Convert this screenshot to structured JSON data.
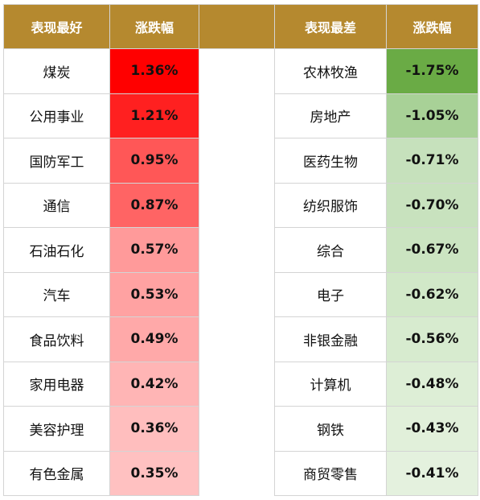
{
  "headers": {
    "best_label": "表现最好",
    "best_change": "涨跌幅",
    "worst_label": "表现最差",
    "worst_change": "涨跌幅"
  },
  "best": [
    {
      "name": "煤炭",
      "change": "1.36%",
      "color": "#ff0000"
    },
    {
      "name": "公用事业",
      "change": "1.21%",
      "color": "#ff2020"
    },
    {
      "name": "国防军工",
      "change": "0.95%",
      "color": "#ff5757"
    },
    {
      "name": "通信",
      "change": "0.87%",
      "color": "#ff6464"
    },
    {
      "name": "石油石化",
      "change": "0.57%",
      "color": "#ff9a9a"
    },
    {
      "name": "汽车",
      "change": "0.53%",
      "color": "#ffa2a2"
    },
    {
      "name": "食品饮料",
      "change": "0.49%",
      "color": "#ffa9a9"
    },
    {
      "name": "家用电器",
      "change": "0.42%",
      "color": "#ffb5b5"
    },
    {
      "name": "美容护理",
      "change": "0.36%",
      "color": "#ffbebe"
    },
    {
      "name": "有色金属",
      "change": "0.35%",
      "color": "#ffc1c1"
    }
  ],
  "worst": [
    {
      "name": "农林牧渔",
      "change": "-1.75%",
      "color": "#6aab45"
    },
    {
      "name": "房地产",
      "change": "-1.05%",
      "color": "#a8d197"
    },
    {
      "name": "医药生物",
      "change": "-0.71%",
      "color": "#c6e1bc"
    },
    {
      "name": "纺织服饰",
      "change": "-0.70%",
      "color": "#c8e2be"
    },
    {
      "name": "综合",
      "change": "-0.67%",
      "color": "#cbe4c1"
    },
    {
      "name": "电子",
      "change": "-0.62%",
      "color": "#d1e8c8"
    },
    {
      "name": "非银金融",
      "change": "-0.56%",
      "color": "#d7ebcf"
    },
    {
      "name": "计算机",
      "change": "-0.48%",
      "color": "#ddeed6"
    },
    {
      "name": "钢铁",
      "change": "-0.43%",
      "color": "#e1f0da"
    },
    {
      "name": "商贸零售",
      "change": "-0.41%",
      "color": "#e4f1de"
    }
  ]
}
